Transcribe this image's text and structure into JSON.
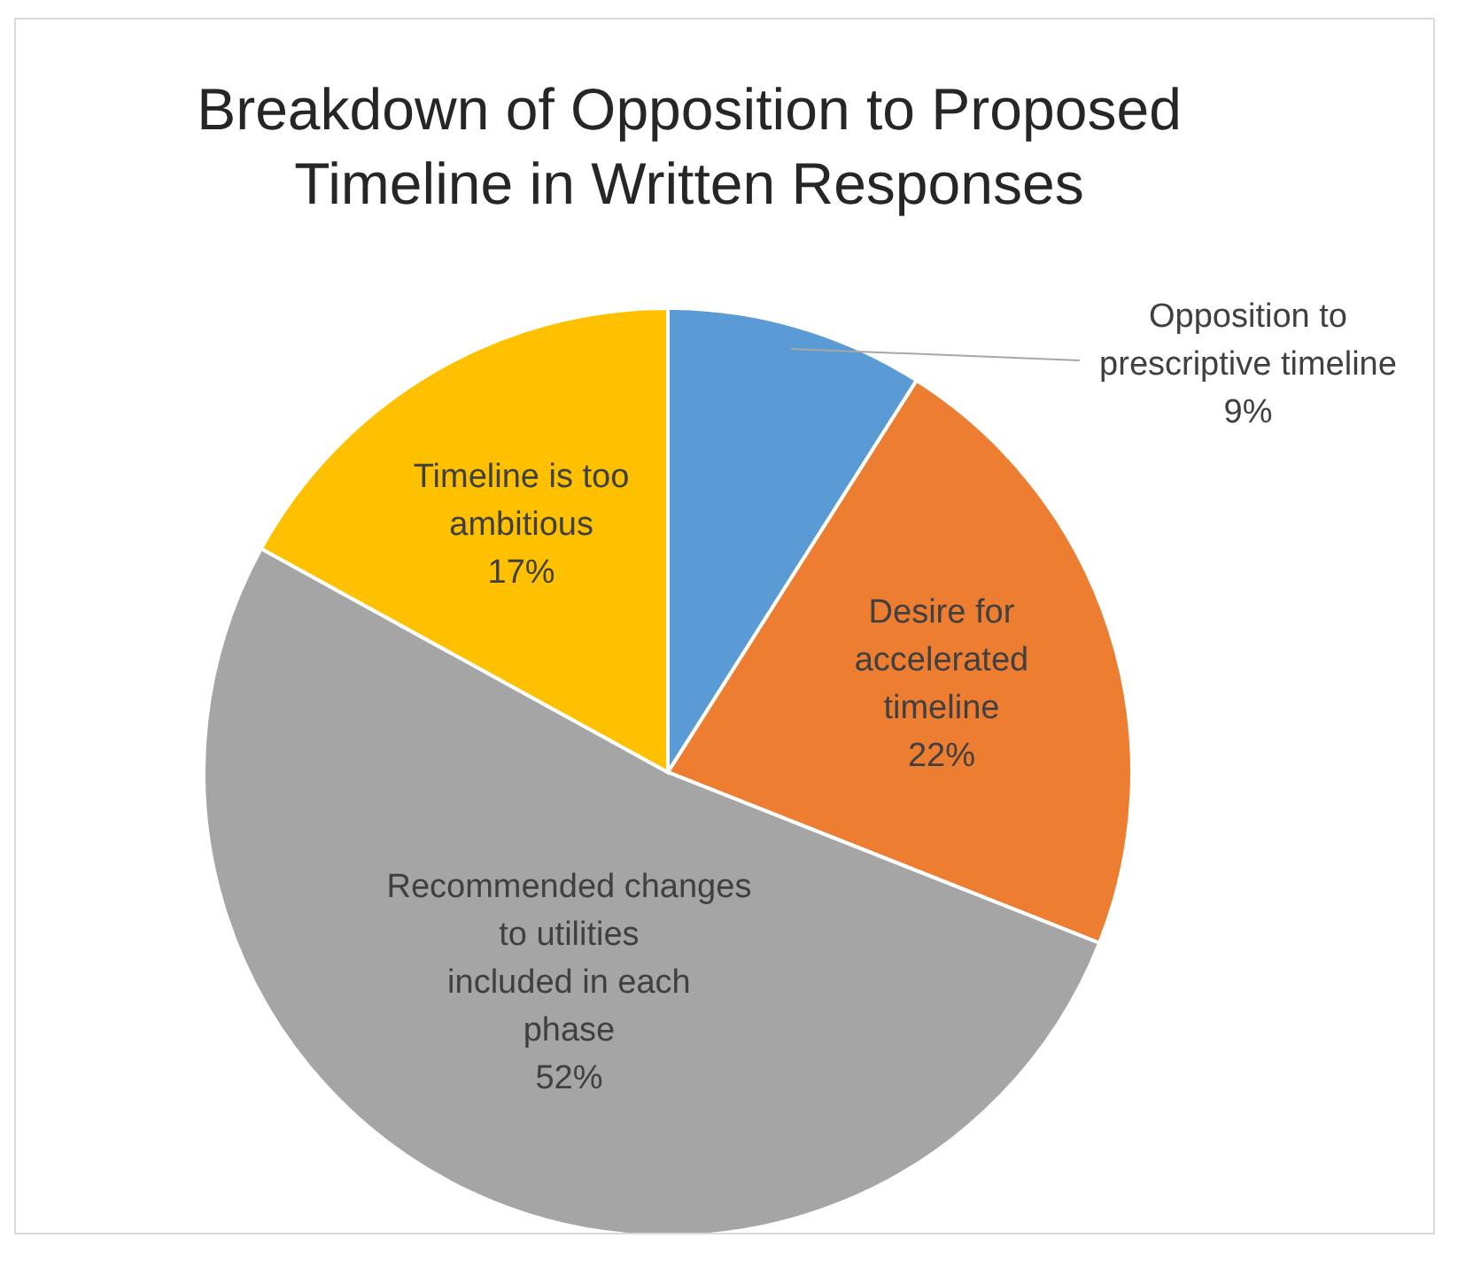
{
  "chart_data": {
    "type": "pie",
    "title": "Breakdown of Opposition to Proposed Timeline in Written Responses",
    "categories": [
      "Opposition to prescriptive timeline",
      "Desire for accelerated timeline",
      "Recommended changes to utilities included in each phase",
      "Timeline is too ambitious"
    ],
    "values": [
      9,
      22,
      52,
      17
    ],
    "colors": [
      "#5b9bd5",
      "#ed7d31",
      "#a5a5a5",
      "#ffc000"
    ],
    "value_labels": [
      "9%",
      "22%",
      "52%",
      "17%"
    ],
    "legend": false
  }
}
